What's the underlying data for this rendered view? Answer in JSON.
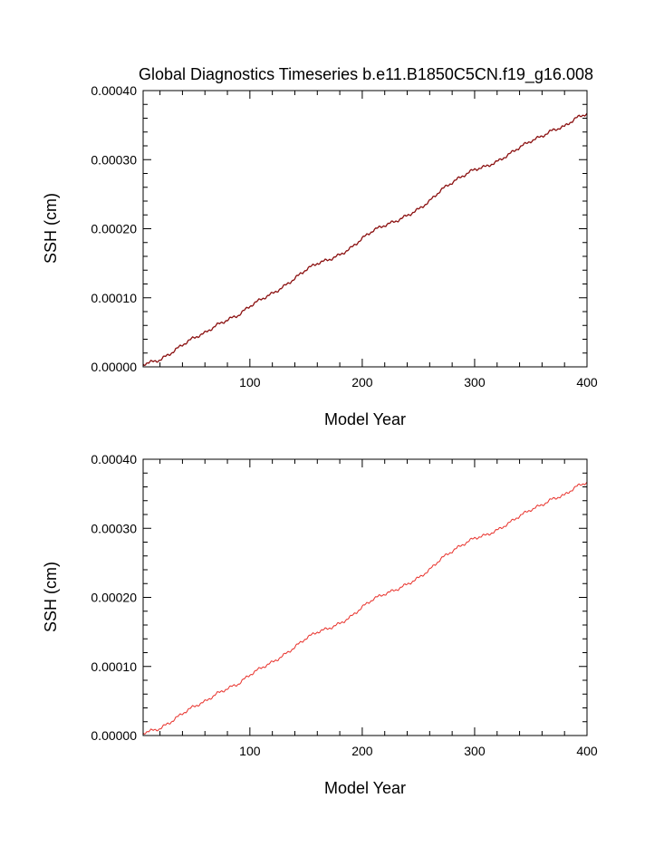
{
  "chart_data": [
    {
      "type": "line",
      "title": "Global Diagnostics Timeseries b.e11.B1850C5CN.f19_g16.008",
      "xlabel": "Model Year",
      "ylabel": "SSH (cm)",
      "xlim": [
        5,
        400
      ],
      "ylim": [
        0.0,
        0.0004
      ],
      "xticks": [
        100,
        200,
        300,
        400
      ],
      "xtick_labels": [
        "100",
        "200",
        "300",
        "400"
      ],
      "yticks": [
        0.0,
        0.0001,
        0.0002,
        0.0003,
        0.0004
      ],
      "ytick_labels": [
        "0.00000",
        "0.00010",
        "0.00020",
        "0.00030",
        "0.00040"
      ],
      "grid": false,
      "line_color": "#8b1010",
      "series": [
        {
          "x": [
            5,
            10,
            20,
            30,
            40,
            50,
            60,
            70,
            80,
            90,
            100,
            110,
            120,
            130,
            140,
            150,
            160,
            170,
            180,
            190,
            200,
            210,
            220,
            230,
            240,
            250,
            260,
            270,
            280,
            290,
            300,
            310,
            320,
            330,
            340,
            350,
            360,
            370,
            380,
            390,
            400
          ],
          "values": [
            4e-06,
            6e-06,
            1e-05,
            2e-05,
            3.2e-05,
            4.2e-05,
            4.9e-05,
            6e-05,
            6.8e-05,
            7.5e-05,
            8.8e-05,
            9.8e-05,
            0.000106,
            0.000116,
            0.000128,
            0.000141,
            0.00015,
            0.000155,
            0.000162,
            0.000172,
            0.000186,
            0.000198,
            0.000205,
            0.000211,
            0.000219,
            0.000228,
            0.00024,
            0.000256,
            0.000267,
            0.000277,
            0.000286,
            0.00029,
            0.000297,
            0.000307,
            0.000318,
            0.000327,
            0.000334,
            0.000343,
            0.000348,
            0.00036,
            0.000367
          ]
        }
      ]
    },
    {
      "type": "line",
      "title": "",
      "xlabel": "Model Year",
      "ylabel": "SSH (cm)",
      "xlim": [
        5,
        400
      ],
      "ylim": [
        0.0,
        0.0004
      ],
      "xticks": [
        100,
        200,
        300,
        400
      ],
      "xtick_labels": [
        "100",
        "200",
        "300",
        "400"
      ],
      "yticks": [
        0.0,
        0.0001,
        0.0002,
        0.0003,
        0.0004
      ],
      "ytick_labels": [
        "0.00000",
        "0.00010",
        "0.00020",
        "0.00030",
        "0.00040"
      ],
      "grid": false,
      "line_color": "#e8302a",
      "series": [
        {
          "x": [
            5,
            10,
            20,
            30,
            40,
            50,
            60,
            70,
            80,
            90,
            100,
            110,
            120,
            130,
            140,
            150,
            160,
            170,
            180,
            190,
            200,
            210,
            220,
            230,
            240,
            250,
            260,
            270,
            280,
            290,
            300,
            310,
            320,
            330,
            340,
            350,
            360,
            370,
            380,
            390,
            400
          ],
          "values": [
            4e-06,
            6e-06,
            1e-05,
            2e-05,
            3.2e-05,
            4.2e-05,
            4.9e-05,
            6e-05,
            6.8e-05,
            7.5e-05,
            8.8e-05,
            9.8e-05,
            0.000106,
            0.000116,
            0.000128,
            0.000141,
            0.00015,
            0.000155,
            0.000162,
            0.000172,
            0.000186,
            0.000198,
            0.000205,
            0.000211,
            0.000219,
            0.000228,
            0.00024,
            0.000256,
            0.000267,
            0.000277,
            0.000286,
            0.00029,
            0.000297,
            0.000307,
            0.000318,
            0.000327,
            0.000334,
            0.000343,
            0.000348,
            0.00036,
            0.000367
          ]
        }
      ]
    }
  ]
}
